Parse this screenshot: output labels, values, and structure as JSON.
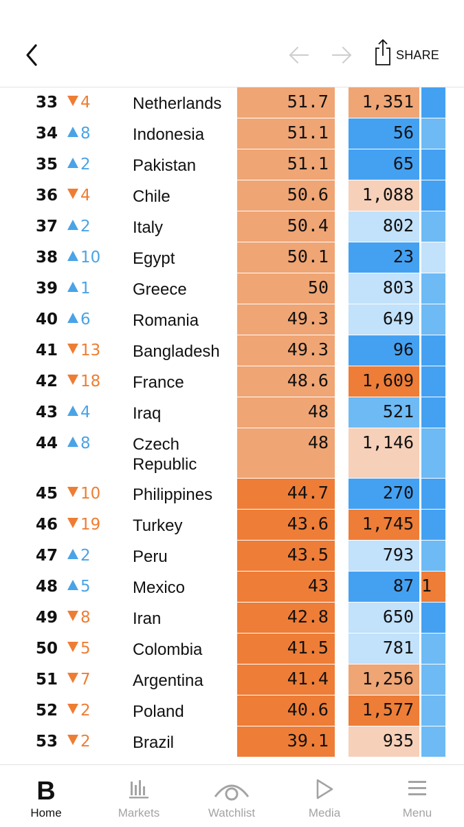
{
  "header": {
    "share_label": "SHARE"
  },
  "colors": {
    "orange_light": "#f6d0b9",
    "orange_mid": "#efa574",
    "orange_dark": "#ee7d37",
    "blue_light": "#c2e1fa",
    "blue_mid": "#6dbaf5",
    "blue_dark": "#44a1f2",
    "up": "#4aa3e6",
    "down": "#ee7d33"
  },
  "rows": [
    {
      "rank": "33",
      "dir": "down",
      "change": "4",
      "country": "Netherlands",
      "score": "51.7",
      "score_color": "#efa574",
      "value": "1,351",
      "value_color": "#efa574",
      "edge_color": "#44a1f2",
      "edge_text": ""
    },
    {
      "rank": "34",
      "dir": "up",
      "change": "8",
      "country": "Indonesia",
      "score": "51.1",
      "score_color": "#efa574",
      "value": "56",
      "value_color": "#44a1f2",
      "edge_color": "#6dbaf5",
      "edge_text": ""
    },
    {
      "rank": "35",
      "dir": "up",
      "change": "2",
      "country": "Pakistan",
      "score": "51.1",
      "score_color": "#efa574",
      "value": "65",
      "value_color": "#44a1f2",
      "edge_color": "#44a1f2",
      "edge_text": ""
    },
    {
      "rank": "36",
      "dir": "down",
      "change": "4",
      "country": "Chile",
      "score": "50.6",
      "score_color": "#efa574",
      "value": "1,088",
      "value_color": "#f6d0b9",
      "edge_color": "#44a1f2",
      "edge_text": ""
    },
    {
      "rank": "37",
      "dir": "up",
      "change": "2",
      "country": "Italy",
      "score": "50.4",
      "score_color": "#efa574",
      "value": "802",
      "value_color": "#c2e1fa",
      "edge_color": "#6dbaf5",
      "edge_text": ""
    },
    {
      "rank": "38",
      "dir": "up",
      "change": "10",
      "country": "Egypt",
      "score": "50.1",
      "score_color": "#efa574",
      "value": "23",
      "value_color": "#44a1f2",
      "edge_color": "#c2e1fa",
      "edge_text": ""
    },
    {
      "rank": "39",
      "dir": "up",
      "change": "1",
      "country": "Greece",
      "score": "50",
      "score_color": "#efa574",
      "value": "803",
      "value_color": "#c2e1fa",
      "edge_color": "#6dbaf5",
      "edge_text": ""
    },
    {
      "rank": "40",
      "dir": "up",
      "change": "6",
      "country": "Romania",
      "score": "49.3",
      "score_color": "#efa574",
      "value": "649",
      "value_color": "#c2e1fa",
      "edge_color": "#6dbaf5",
      "edge_text": ""
    },
    {
      "rank": "41",
      "dir": "down",
      "change": "13",
      "country": "Bangladesh",
      "score": "49.3",
      "score_color": "#efa574",
      "value": "96",
      "value_color": "#44a1f2",
      "edge_color": "#44a1f2",
      "edge_text": ""
    },
    {
      "rank": "42",
      "dir": "down",
      "change": "18",
      "country": "France",
      "score": "48.6",
      "score_color": "#efa574",
      "value": "1,609",
      "value_color": "#ee7d37",
      "edge_color": "#44a1f2",
      "edge_text": ""
    },
    {
      "rank": "43",
      "dir": "up",
      "change": "4",
      "country": "Iraq",
      "score": "48",
      "score_color": "#efa574",
      "value": "521",
      "value_color": "#6dbaf5",
      "edge_color": "#44a1f2",
      "edge_text": ""
    },
    {
      "rank": "44",
      "dir": "up",
      "change": "8",
      "country": "Czech Republic",
      "score": "48",
      "score_color": "#efa574",
      "value": "1,146",
      "value_color": "#f6d0b9",
      "edge_color": "#6dbaf5",
      "edge_text": ""
    },
    {
      "rank": "45",
      "dir": "down",
      "change": "10",
      "country": "Philippines",
      "score": "44.7",
      "score_color": "#ee7d37",
      "value": "270",
      "value_color": "#44a1f2",
      "edge_color": "#44a1f2",
      "edge_text": ""
    },
    {
      "rank": "46",
      "dir": "down",
      "change": "19",
      "country": "Turkey",
      "score": "43.6",
      "score_color": "#ee7d37",
      "value": "1,745",
      "value_color": "#ee7d37",
      "edge_color": "#44a1f2",
      "edge_text": ""
    },
    {
      "rank": "47",
      "dir": "up",
      "change": "2",
      "country": "Peru",
      "score": "43.5",
      "score_color": "#ee7d37",
      "value": "793",
      "value_color": "#c2e1fa",
      "edge_color": "#6dbaf5",
      "edge_text": ""
    },
    {
      "rank": "48",
      "dir": "up",
      "change": "5",
      "country": "Mexico",
      "score": "43",
      "score_color": "#ee7d37",
      "value": "87",
      "value_color": "#44a1f2",
      "edge_color": "#ee7d37",
      "edge_text": "1"
    },
    {
      "rank": "49",
      "dir": "down",
      "change": "8",
      "country": "Iran",
      "score": "42.8",
      "score_color": "#ee7d37",
      "value": "650",
      "value_color": "#c2e1fa",
      "edge_color": "#44a1f2",
      "edge_text": ""
    },
    {
      "rank": "50",
      "dir": "down",
      "change": "5",
      "country": "Colombia",
      "score": "41.5",
      "score_color": "#ee7d37",
      "value": "781",
      "value_color": "#c2e1fa",
      "edge_color": "#6dbaf5",
      "edge_text": ""
    },
    {
      "rank": "51",
      "dir": "down",
      "change": "7",
      "country": "Argentina",
      "score": "41.4",
      "score_color": "#ee7d37",
      "value": "1,256",
      "value_color": "#efa574",
      "edge_color": "#6dbaf5",
      "edge_text": ""
    },
    {
      "rank": "52",
      "dir": "down",
      "change": "2",
      "country": "Poland",
      "score": "40.6",
      "score_color": "#ee7d37",
      "value": "1,577",
      "value_color": "#ee7d37",
      "edge_color": "#6dbaf5",
      "edge_text": ""
    },
    {
      "rank": "53",
      "dir": "down",
      "change": "2",
      "country": "Brazil",
      "score": "39.1",
      "score_color": "#ee7d37",
      "value": "935",
      "value_color": "#f6d0b9",
      "edge_color": "#6dbaf5",
      "edge_text": ""
    }
  ],
  "tabs": [
    {
      "label": "Home",
      "icon": "bloomberg-logo-icon",
      "active": true
    },
    {
      "label": "Markets",
      "icon": "bar-chart-icon",
      "active": false
    },
    {
      "label": "Watchlist",
      "icon": "eye-icon",
      "active": false
    },
    {
      "label": "Media",
      "icon": "play-icon",
      "active": false
    },
    {
      "label": "Menu",
      "icon": "hamburger-menu-icon",
      "active": false
    }
  ]
}
